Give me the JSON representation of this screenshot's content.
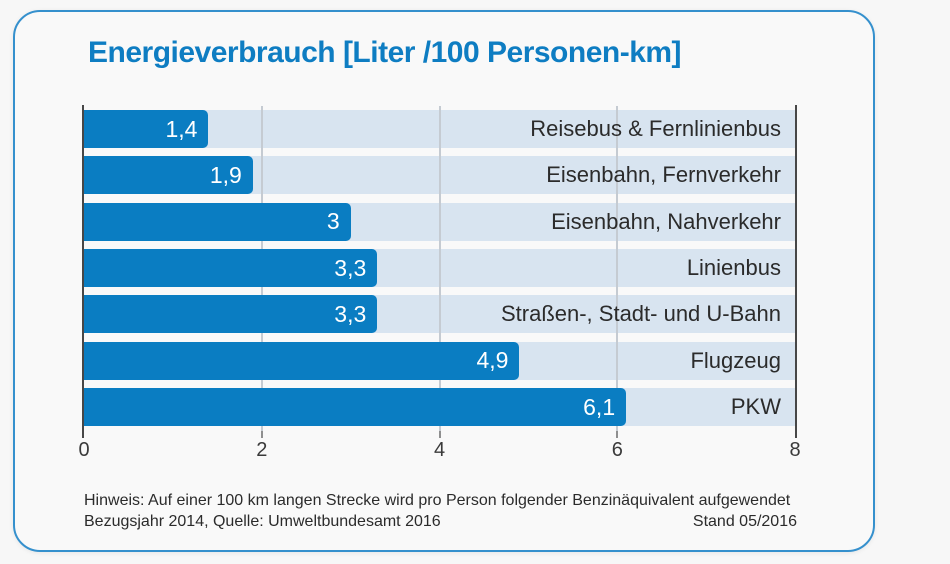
{
  "title": "Energieverbrauch [Liter /100 Personen-km]",
  "chart_data": {
    "type": "bar",
    "orientation": "horizontal",
    "title": "Energieverbrauch [Liter /100 Personen-km]",
    "categories": [
      "Reisebus & Fernlinienbus",
      "Eisenbahn, Fernverkehr",
      "Eisenbahn, Nahverkehr",
      "Linienbus",
      "Straßen-, Stadt- und U-Bahn",
      "Flugzeug",
      "PKW"
    ],
    "values": [
      1.4,
      1.9,
      3,
      3.3,
      3.3,
      4.9,
      6.1
    ],
    "value_labels": [
      "1,4",
      "1,9",
      "3",
      "3,3",
      "3,3",
      "4,9",
      "6,1"
    ],
    "xlabel": "",
    "ylabel": "",
    "xlim": [
      0,
      8
    ],
    "x_ticks": [
      0,
      2,
      4,
      6,
      8
    ],
    "x_tick_labels": [
      "0",
      "2",
      "4",
      "6",
      "8"
    ],
    "grid": true,
    "gridline_values": [
      2,
      4,
      6
    ],
    "legend": false,
    "colors": {
      "bar": "#0a7dc2",
      "track": "#d8e4f0",
      "title": "#0e7dc2",
      "card_border": "#3590cd",
      "axis": "#474747",
      "gridline": "#c5cbd2",
      "label_text": "#2b2b2b",
      "value_text": "#ffffff"
    }
  },
  "footer": {
    "note": "Hinweis: Auf einer 100 km langen Strecke wird pro Person folgender Benzinäquivalent aufgewendet",
    "source": "Bezugsjahr 2014, Quelle: Umweltbundesamt 2016",
    "stand": "Stand 05/2016"
  }
}
